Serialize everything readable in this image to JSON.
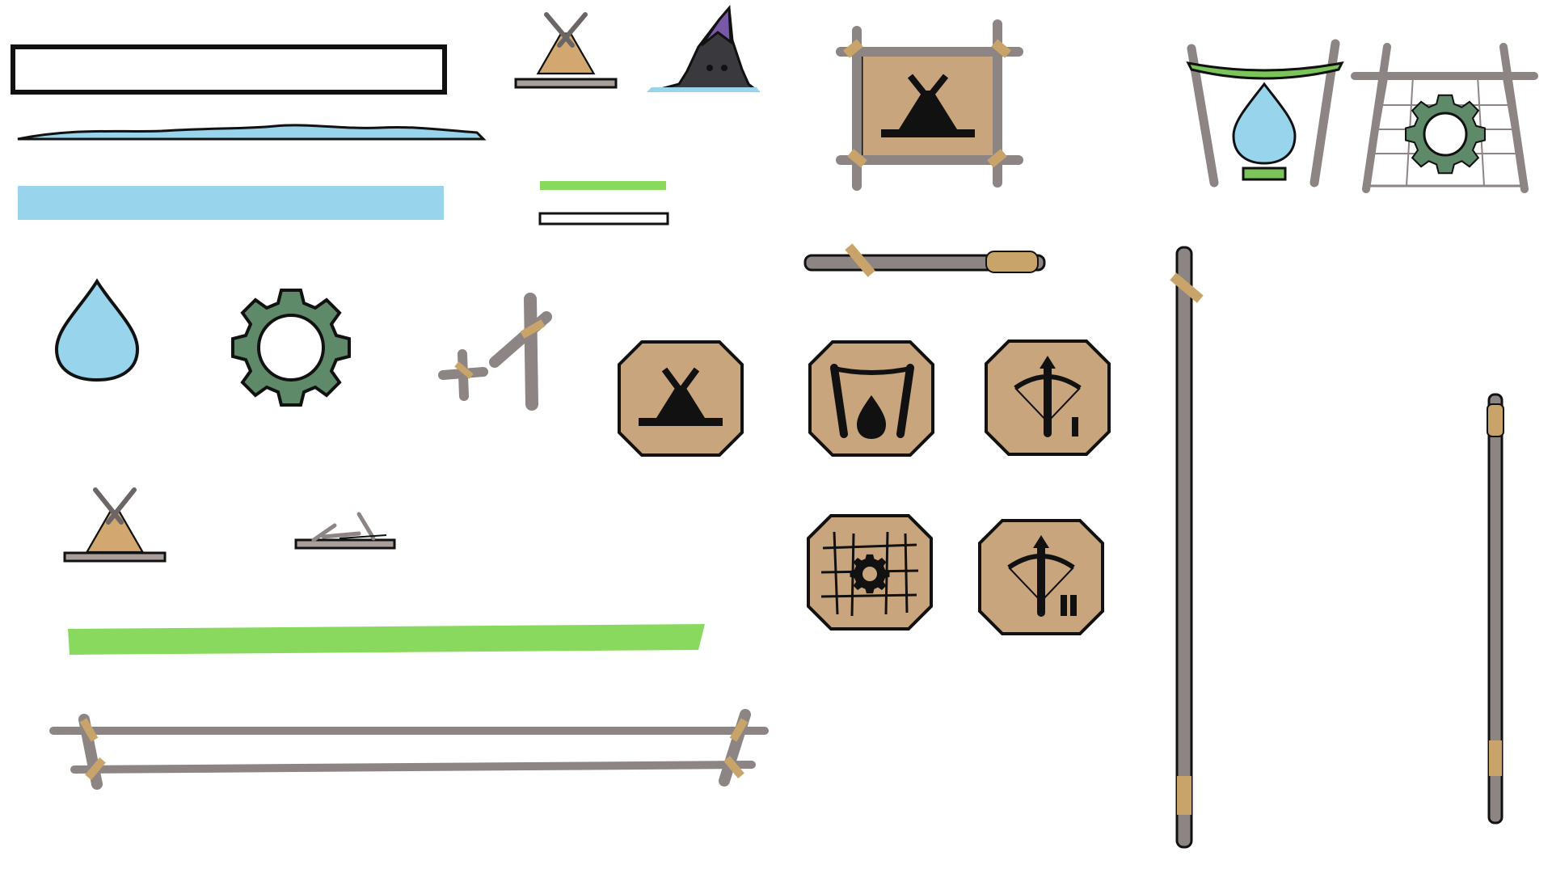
{
  "sprite_sheet": {
    "colors": {
      "outline": "#111111",
      "water": "#98d4ec",
      "gear": "#5e8a6a",
      "health_green": "#8ad95f",
      "wood": "#8d8484",
      "wood_dark": "#6b6565",
      "canvas": "#c9a57e",
      "tent": "#d2a870",
      "rope": "#c9a46a",
      "plank": "#a89e9a",
      "crystal": "#7a58a8",
      "rock": "#3a3a3e",
      "leaf": "#7ac45a"
    },
    "assets": [
      {
        "name": "empty-bar-frame-icon"
      },
      {
        "name": "water-surface-strip-icon"
      },
      {
        "name": "water-bar-fill-icon"
      },
      {
        "name": "tent-small-icon"
      },
      {
        "name": "crystal-rock-icon"
      },
      {
        "name": "tent-build-panel-icon"
      },
      {
        "name": "water-collector-icon"
      },
      {
        "name": "gear-workshop-icon"
      },
      {
        "name": "mini-green-bar-icon"
      },
      {
        "name": "mini-bar-frame-icon"
      },
      {
        "name": "wooden-stick-icon"
      },
      {
        "name": "water-drop-icon"
      },
      {
        "name": "gear-icon"
      },
      {
        "name": "wooden-posts-icon"
      },
      {
        "name": "tent-button-icon"
      },
      {
        "name": "water-button-icon"
      },
      {
        "name": "crossbow-button-icon"
      },
      {
        "name": "gear-net-button-icon"
      },
      {
        "name": "crossbow-double-button-icon"
      },
      {
        "name": "tall-pole-icon"
      },
      {
        "name": "thin-pole-icon"
      },
      {
        "name": "tent-small-2-icon"
      },
      {
        "name": "broken-raft-icon"
      },
      {
        "name": "health-bar-fill-icon"
      },
      {
        "name": "wooden-frame-bar-icon"
      }
    ]
  }
}
